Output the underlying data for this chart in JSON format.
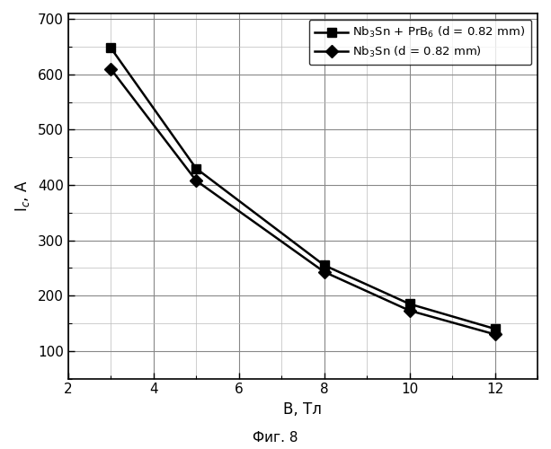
{
  "series1": {
    "x": [
      3,
      5,
      8,
      10,
      12
    ],
    "y": [
      648,
      430,
      255,
      185,
      140
    ],
    "label": "Nb$_3$Sn + PrB$_6$ (d = 0.82 mm)",
    "color": "#000000",
    "marker": "s",
    "markersize": 7,
    "linewidth": 1.8
  },
  "series2": {
    "x": [
      3,
      5,
      8,
      10,
      12
    ],
    "y": [
      610,
      408,
      243,
      173,
      130
    ],
    "label": "Nb$_3$Sn (d = 0.82 mm)",
    "color": "#000000",
    "marker": "D",
    "markersize": 7,
    "linewidth": 1.8
  },
  "xlabel": "B, Тл",
  "ylabel": "I$_c$, А",
  "xlim": [
    2,
    13
  ],
  "ylim": [
    50,
    710
  ],
  "xticks": [
    2,
    4,
    6,
    8,
    10,
    12
  ],
  "yticks": [
    100,
    200,
    300,
    400,
    500,
    600,
    700
  ],
  "caption": "Фиг. 8",
  "figsize": [
    6.13,
    5.0
  ],
  "dpi": 100,
  "background_color": "#ffffff",
  "legend_loc": "upper right"
}
